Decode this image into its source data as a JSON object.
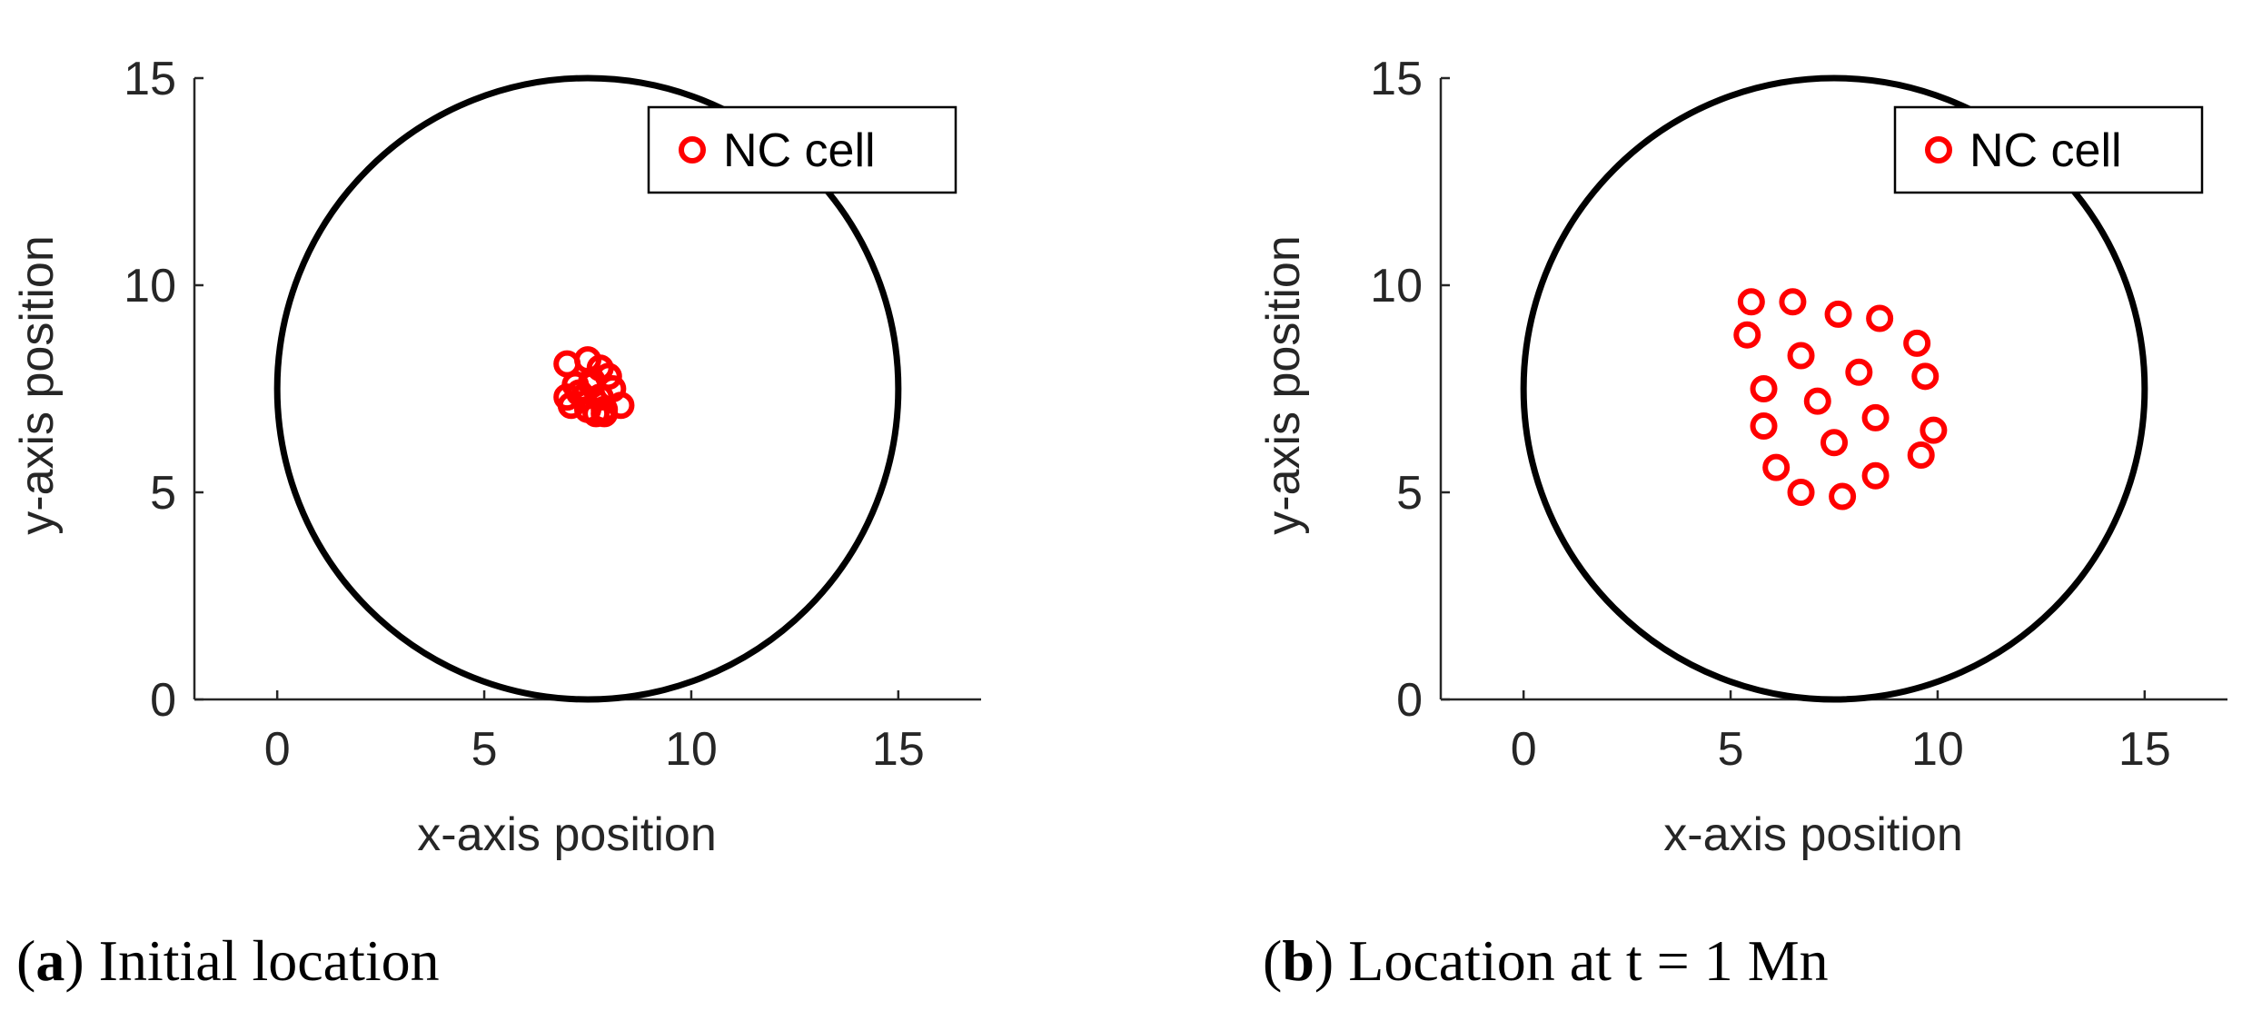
{
  "colors": {
    "marker": "#ff0000",
    "circle": "#000000",
    "axis": "#262626"
  },
  "panels": [
    {
      "caption": {
        "letter": "a",
        "text": "Initial location"
      },
      "legend": {
        "label": "NC cell",
        "position": "top-right"
      },
      "chart_data": {
        "type": "scatter",
        "xlabel": "x-axis position",
        "ylabel": "y-axis position",
        "xlim": [
          -2,
          17
        ],
        "ylim": [
          0,
          15
        ],
        "xticks": [
          "0",
          "5",
          "10",
          "15"
        ],
        "yticks": [
          "0",
          "5",
          "10",
          "15"
        ],
        "boundary_circle": {
          "cx": 7.5,
          "cy": 7.5,
          "r": 7.5
        },
        "series": [
          {
            "name": "NC cell",
            "marker": "circle",
            "x": [
              7.0,
              7.5,
              7.8,
              8.0,
              7.2,
              7.6,
              8.1,
              7.4,
              7.1,
              7.9,
              7.7,
              8.3,
              7.3,
              7.6,
              7.0,
              7.8,
              7.5,
              7.9
            ],
            "y": [
              8.1,
              8.2,
              8.0,
              7.8,
              7.6,
              7.7,
              7.5,
              7.3,
              7.1,
              7.0,
              6.9,
              7.1,
              7.4,
              7.6,
              7.3,
              7.3,
              7.0,
              6.9
            ]
          }
        ]
      }
    },
    {
      "caption": {
        "letter": "b",
        "text": "Location at t = 1 Mn"
      },
      "legend": {
        "label": "NC cell",
        "position": "top-right"
      },
      "chart_data": {
        "type": "scatter",
        "xlabel": "x-axis position",
        "ylabel": "y-axis position",
        "xlim": [
          -2,
          17
        ],
        "ylim": [
          0,
          15
        ],
        "xticks": [
          "0",
          "5",
          "10",
          "15"
        ],
        "yticks": [
          "0",
          "5",
          "10",
          "15"
        ],
        "boundary_circle": {
          "cx": 7.5,
          "cy": 7.5,
          "r": 7.5
        },
        "series": [
          {
            "name": "NC cell",
            "marker": "circle",
            "x": [
              5.5,
              6.5,
              7.6,
              8.6,
              9.5,
              5.4,
              6.7,
              8.1,
              9.7,
              5.8,
              7.1,
              8.5,
              9.9,
              5.8,
              7.5,
              9.6,
              6.1,
              8.5,
              6.7,
              7.7
            ],
            "y": [
              9.6,
              9.6,
              9.3,
              9.2,
              8.6,
              8.8,
              8.3,
              7.9,
              7.8,
              7.5,
              7.2,
              6.8,
              6.5,
              6.6,
              6.2,
              5.9,
              5.6,
              5.4,
              5.0,
              4.9
            ]
          }
        ]
      }
    }
  ]
}
